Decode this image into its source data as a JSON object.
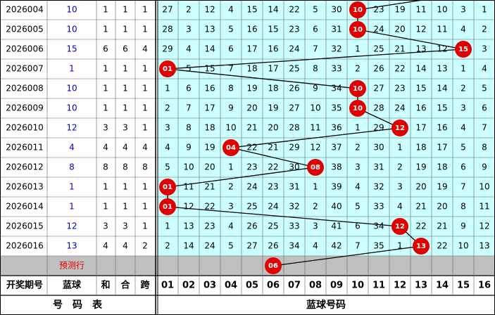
{
  "rows": [
    {
      "period": "2026004",
      "blue": 10,
      "sum": 1,
      "he": 1,
      "span": 1,
      "cells": [
        27,
        2,
        12,
        4,
        15,
        14,
        22,
        5,
        30,
        "10",
        23,
        19,
        11,
        10,
        3,
        1
      ]
    },
    {
      "period": "2026005",
      "blue": 10,
      "sum": 1,
      "he": 1,
      "span": 1,
      "cells": [
        28,
        3,
        13,
        5,
        16,
        15,
        23,
        6,
        31,
        "10",
        24,
        20,
        12,
        11,
        4,
        2
      ]
    },
    {
      "period": "2026006",
      "blue": 15,
      "sum": 6,
      "he": 6,
      "span": 4,
      "cells": [
        29,
        4,
        14,
        6,
        17,
        16,
        24,
        7,
        32,
        1,
        25,
        21,
        13,
        12,
        "15",
        3
      ]
    },
    {
      "period": "2026007",
      "blue": 1,
      "sum": 1,
      "he": 1,
      "span": 1,
      "cells": [
        "01",
        5,
        15,
        7,
        18,
        17,
        25,
        8,
        33,
        2,
        26,
        22,
        14,
        13,
        1,
        4
      ]
    },
    {
      "period": "2026008",
      "blue": 10,
      "sum": 1,
      "he": 1,
      "span": 1,
      "cells": [
        1,
        6,
        16,
        8,
        19,
        18,
        26,
        9,
        34,
        "10",
        27,
        23,
        15,
        14,
        2,
        5
      ]
    },
    {
      "period": "2026009",
      "blue": 10,
      "sum": 1,
      "he": 1,
      "span": 1,
      "cells": [
        2,
        7,
        17,
        9,
        20,
        19,
        27,
        10,
        35,
        "10",
        28,
        24,
        16,
        15,
        3,
        6
      ]
    },
    {
      "period": "2026010",
      "blue": 12,
      "sum": 3,
      "he": 3,
      "span": 1,
      "cells": [
        3,
        8,
        18,
        10,
        21,
        20,
        28,
        11,
        36,
        1,
        29,
        "12",
        17,
        16,
        4,
        7
      ]
    },
    {
      "period": "2026011",
      "blue": 4,
      "sum": 4,
      "he": 4,
      "span": 4,
      "cells": [
        4,
        9,
        19,
        "04",
        22,
        21,
        29,
        12,
        37,
        2,
        30,
        1,
        18,
        17,
        5,
        8
      ]
    },
    {
      "period": "2026012",
      "blue": 8,
      "sum": 8,
      "he": 8,
      "span": 8,
      "cells": [
        5,
        10,
        20,
        1,
        23,
        22,
        30,
        "08",
        38,
        3,
        31,
        2,
        19,
        18,
        6,
        9
      ]
    },
    {
      "period": "2026013",
      "blue": 1,
      "sum": 1,
      "he": 1,
      "span": 1,
      "cells": [
        "01",
        11,
        21,
        2,
        24,
        23,
        31,
        1,
        39,
        4,
        32,
        3,
        20,
        19,
        7,
        10
      ]
    },
    {
      "period": "2026014",
      "blue": 1,
      "sum": 1,
      "he": 1,
      "span": 1,
      "cells": [
        "01",
        12,
        22,
        3,
        25,
        24,
        32,
        2,
        40,
        5,
        33,
        4,
        21,
        20,
        8,
        11
      ]
    },
    {
      "period": "2026015",
      "blue": 12,
      "sum": 3,
      "he": 3,
      "span": 1,
      "cells": [
        1,
        13,
        23,
        4,
        26,
        25,
        33,
        3,
        41,
        6,
        34,
        "12",
        22,
        21,
        9,
        12
      ]
    },
    {
      "period": "2026016",
      "blue": 13,
      "sum": 4,
      "he": 4,
      "span": 2,
      "cells": [
        2,
        14,
        24,
        5,
        27,
        26,
        34,
        4,
        42,
        7,
        35,
        1,
        "13",
        22,
        10,
        13
      ]
    }
  ],
  "prediction": {
    "label": "预测行",
    "ball": "06"
  },
  "header": [
    "开奖期号",
    "蓝球",
    "和",
    "合",
    "跨",
    "01",
    "02",
    "03",
    "04",
    "05",
    "06",
    "07",
    "08",
    "09",
    "10",
    "11",
    "12",
    "13",
    "14",
    "15",
    "16"
  ],
  "footer": {
    "left": "号　码　表",
    "right": "蓝球号码"
  }
}
